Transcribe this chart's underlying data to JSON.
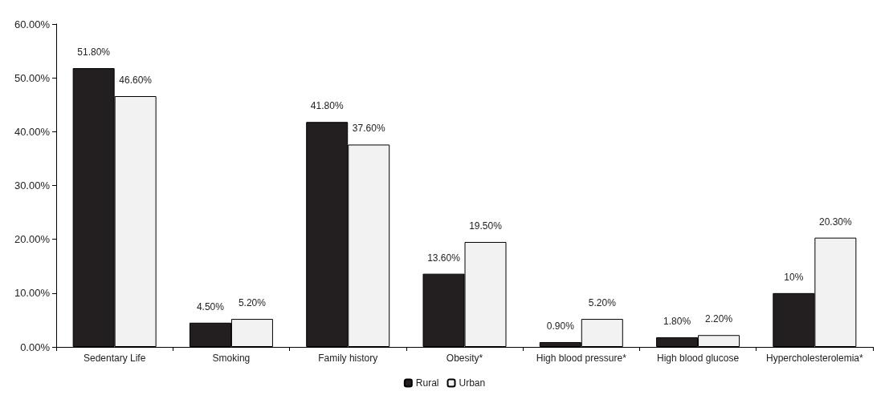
{
  "chart_data": {
    "type": "bar",
    "categories": [
      "Sedentary Life",
      "Smoking",
      "Family history",
      "Obesity*",
      "High blood pressure*",
      "High blood glucose",
      "Hypercholesterolemia*"
    ],
    "series": [
      {
        "name": "Rural",
        "color": "#231f20",
        "values": [
          51.8,
          4.5,
          41.8,
          13.6,
          0.9,
          1.8,
          10
        ],
        "value_labels": [
          "51.80%",
          "4.50%",
          "41.80%",
          "13.60%",
          "0.90%",
          "1.80%",
          "10%"
        ]
      },
      {
        "name": "Urban",
        "color": "#f2f2f2",
        "values": [
          46.6,
          5.2,
          37.6,
          19.5,
          5.2,
          2.2,
          20.3
        ],
        "value_labels": [
          "46.60%",
          "5.20%",
          "37.60%",
          "19.50%",
          "5.20%",
          "2.20%",
          "20.30%"
        ]
      }
    ],
    "ylim": [
      0,
      60
    ],
    "yticks": [
      {
        "value": 0,
        "label": "0.00%"
      },
      {
        "value": 10,
        "label": "10.00%"
      },
      {
        "value": 20,
        "label": "20.00%"
      },
      {
        "value": 30,
        "label": "30.00%"
      },
      {
        "value": 40,
        "label": "40.00%"
      },
      {
        "value": 50,
        "label": "50.00%"
      },
      {
        "value": 60,
        "label": "60.00%"
      }
    ],
    "grid": false,
    "legend": "bottom"
  }
}
